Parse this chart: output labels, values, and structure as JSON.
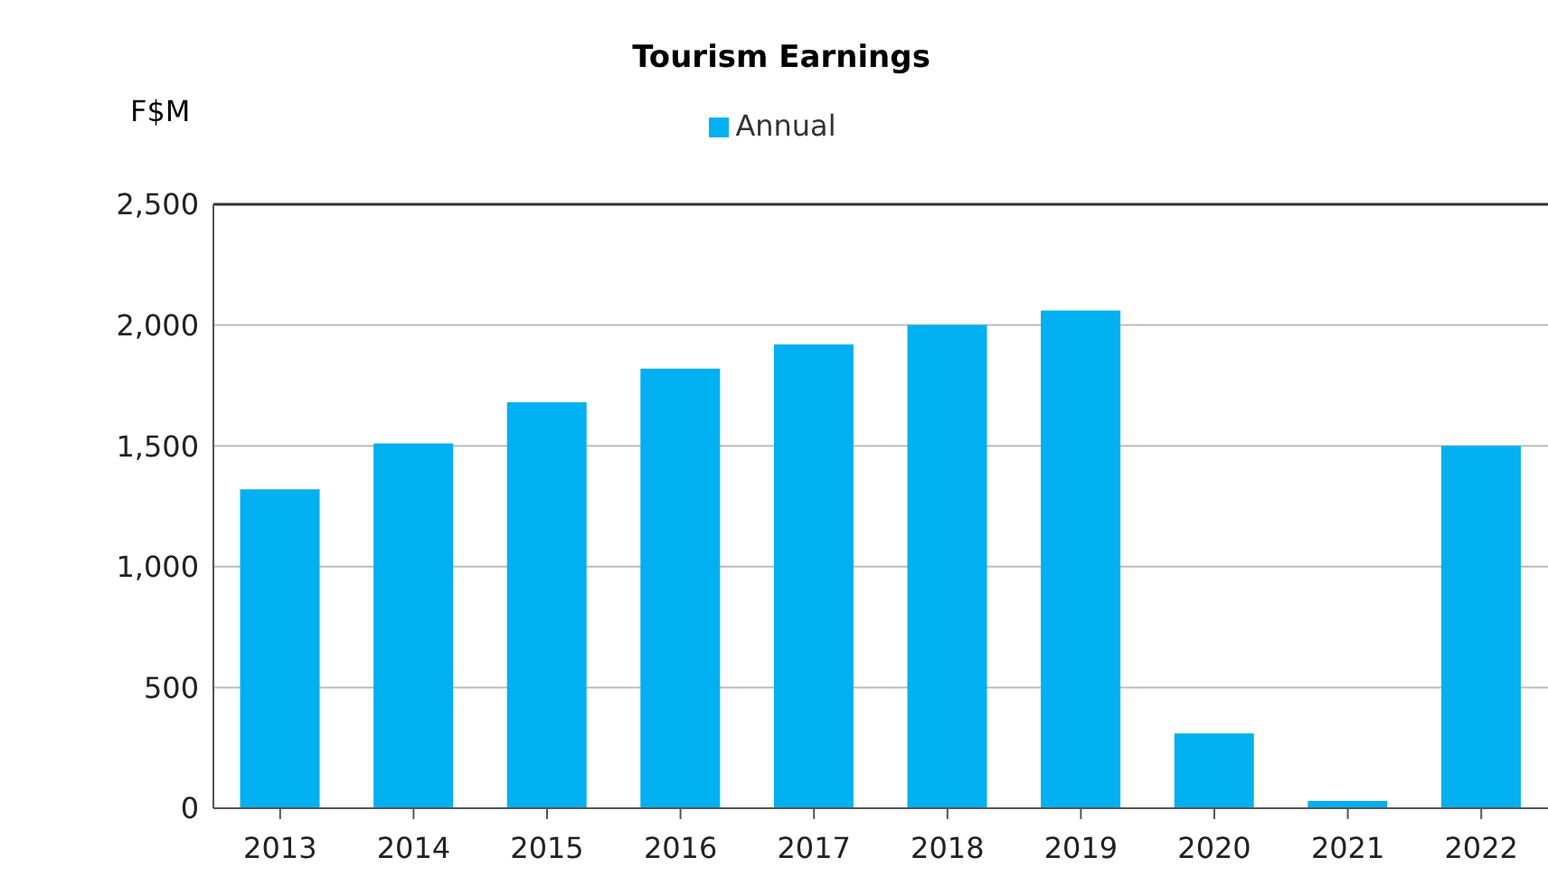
{
  "chart_data": {
    "type": "bar",
    "title": "Tourism Earnings",
    "ylabel": "F$M",
    "categories": [
      "2013",
      "2014",
      "2015",
      "2016",
      "2017",
      "2018",
      "2019",
      "2020",
      "2021",
      "2022"
    ],
    "series": [
      {
        "name": "Annual",
        "color": "#00b0f0",
        "values": [
          1320,
          1510,
          1680,
          1820,
          1920,
          2000,
          2060,
          310,
          30,
          1500
        ]
      }
    ],
    "ylim": [
      0,
      2500
    ],
    "yticks": [
      {
        "value": 0,
        "label": "0"
      },
      {
        "value": 500,
        "label": "500"
      },
      {
        "value": 1000,
        "label": "1,000"
      },
      {
        "value": 1500,
        "label": "1,500"
      },
      {
        "value": 2000,
        "label": "2,000"
      },
      {
        "value": 2500,
        "label": "2,500"
      }
    ],
    "grid": "y",
    "legend": "top"
  }
}
